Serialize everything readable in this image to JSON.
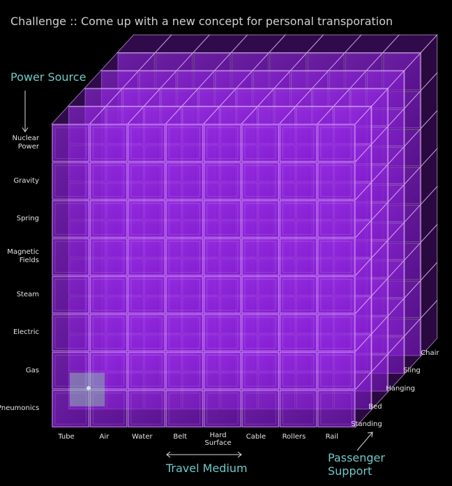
{
  "title": "Challenge :: Come up with a new concept for personal transporation",
  "axes": {
    "power_source": {
      "title": "Power Source",
      "items": [
        [
          "Nuclear",
          "Power"
        ],
        [
          "Gravity"
        ],
        [
          "Spring"
        ],
        [
          "Magnetic",
          "Fields"
        ],
        [
          "Steam"
        ],
        [
          "Electric"
        ],
        [
          "Gas"
        ],
        [
          "Pneumonics"
        ]
      ]
    },
    "travel_medium": {
      "title": "Travel Medium",
      "items": [
        [
          "Tube"
        ],
        [
          "Air"
        ],
        [
          "Water"
        ],
        [
          "Belt"
        ],
        [
          "Hard",
          "Surface"
        ],
        [
          "Cable"
        ],
        [
          "Rollers"
        ],
        [
          "Rail"
        ]
      ]
    },
    "passenger_support": {
      "title_lines": [
        "Passenger",
        "Support"
      ],
      "items": [
        "Standing",
        "Bed",
        "Hanging",
        "Sling",
        "Chair"
      ]
    }
  },
  "colors": {
    "cube_fill": "#8a1fd6",
    "cube_edge": "#e6bdfc",
    "highlight": "#8fd4a8",
    "axis_title": "#6fc8c8",
    "background": "#000000"
  }
}
